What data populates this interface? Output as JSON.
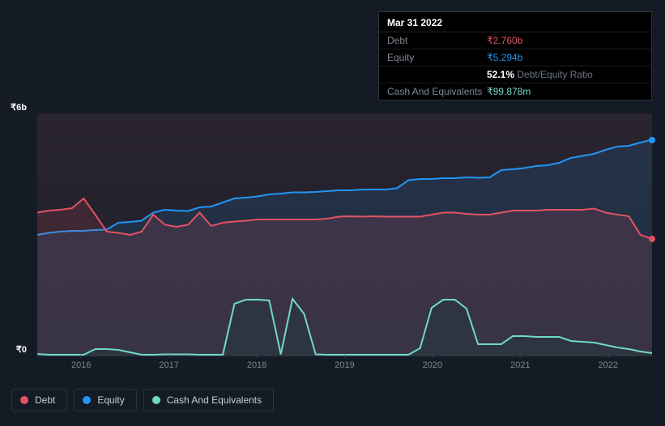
{
  "chart": {
    "type": "area",
    "background_color": "#151b24",
    "plot_background_gradient": [
      "#27202e",
      "#1a1f2a"
    ],
    "grid_color": "#2b3442",
    "x_years": [
      "2016",
      "2017",
      "2018",
      "2019",
      "2020",
      "2021",
      "2022"
    ],
    "y_ticks": [
      {
        "label": "₹6b",
        "value": 6
      },
      {
        "label": "₹0",
        "value": 0
      }
    ],
    "ylim": [
      0,
      6
    ],
    "x_domain": [
      0,
      7
    ],
    "series": {
      "debt": {
        "label": "Debt",
        "color": "#e15361",
        "fill": "#e15361",
        "fill_opacity": 0.15,
        "line_width": 2,
        "end_marker": true,
        "values": [
          3.55,
          3.6,
          3.62,
          3.66,
          3.9,
          3.5,
          3.08,
          3.05,
          3.0,
          3.08,
          3.5,
          3.25,
          3.2,
          3.25,
          3.55,
          3.22,
          3.3,
          3.33,
          3.35,
          3.38,
          3.38,
          3.38,
          3.38,
          3.38,
          3.38,
          3.4,
          3.45,
          3.46,
          3.45,
          3.46,
          3.45,
          3.45,
          3.45,
          3.45,
          3.5,
          3.55,
          3.55,
          3.52,
          3.5,
          3.5,
          3.55,
          3.6,
          3.6,
          3.6,
          3.62,
          3.62,
          3.62,
          3.62,
          3.65,
          3.55,
          3.5,
          3.46,
          3.0,
          2.9
        ]
      },
      "equity": {
        "label": "Equity",
        "color": "#2196f3",
        "fill": "#2196f3",
        "fill_opacity": 0.13,
        "line_width": 2,
        "end_marker": true,
        "values": [
          3.0,
          3.05,
          3.08,
          3.1,
          3.1,
          3.12,
          3.13,
          3.3,
          3.32,
          3.35,
          3.55,
          3.62,
          3.6,
          3.59,
          3.68,
          3.7,
          3.8,
          3.9,
          3.92,
          3.95,
          4.0,
          4.02,
          4.05,
          4.05,
          4.06,
          4.08,
          4.1,
          4.1,
          4.12,
          4.12,
          4.12,
          4.15,
          4.35,
          4.38,
          4.38,
          4.4,
          4.4,
          4.42,
          4.41,
          4.42,
          4.6,
          4.62,
          4.65,
          4.7,
          4.72,
          4.78,
          4.9,
          4.95,
          5.0,
          5.1,
          5.18,
          5.2,
          5.28,
          5.35
        ]
      },
      "cash": {
        "label": "Cash And Equivalents",
        "color": "#71d9c5",
        "fill": "#1f3a38",
        "fill_opacity": 0.42,
        "line_width": 2,
        "end_marker": false,
        "values": [
          0.06,
          0.04,
          0.04,
          0.04,
          0.04,
          0.18,
          0.18,
          0.16,
          0.1,
          0.04,
          0.04,
          0.05,
          0.05,
          0.05,
          0.04,
          0.04,
          0.04,
          1.3,
          1.4,
          1.4,
          1.38,
          0.05,
          1.42,
          1.05,
          0.05,
          0.04,
          0.04,
          0.04,
          0.04,
          0.04,
          0.04,
          0.04,
          0.04,
          0.2,
          1.2,
          1.4,
          1.4,
          1.18,
          0.3,
          0.3,
          0.3,
          0.5,
          0.5,
          0.48,
          0.48,
          0.48,
          0.38,
          0.36,
          0.34,
          0.28,
          0.22,
          0.18,
          0.12,
          0.08
        ]
      }
    }
  },
  "tooltip": {
    "date": "Mar 31 2022",
    "rows": [
      {
        "key": "Debt",
        "value": "₹2.760b",
        "color": "#e15361"
      },
      {
        "key": "Equity",
        "value": "₹5.294b",
        "color": "#2196f3"
      },
      {
        "key": "",
        "value_strong": "52.1%",
        "value_muted": "Debt/Equity Ratio"
      },
      {
        "key": "Cash And Equivalents",
        "value": "₹99.878m",
        "color": "#71d9c5"
      }
    ]
  },
  "legend": [
    {
      "key": "debt",
      "label": "Debt",
      "color": "#e15361"
    },
    {
      "key": "equity",
      "label": "Equity",
      "color": "#2196f3"
    },
    {
      "key": "cash",
      "label": "Cash And Equivalents",
      "color": "#71d9c5"
    }
  ]
}
